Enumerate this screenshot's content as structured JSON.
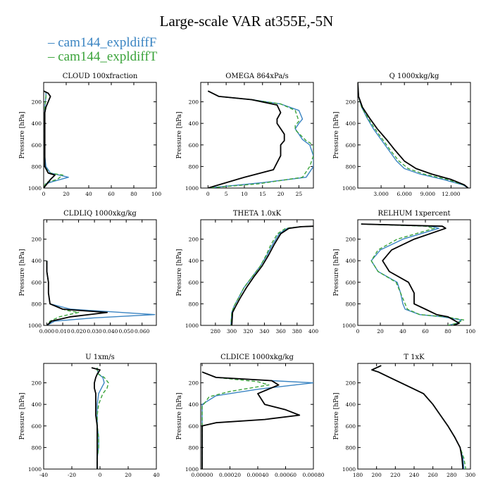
{
  "title": "Large-scale VAR at355E,-5N",
  "legend": [
    {
      "label": "cam144_expldiffF",
      "color": "#3a84c2"
    },
    {
      "label": "cam144_expldiffT",
      "color": "#3aa33a"
    }
  ],
  "series_colors": [
    "#3a84c2",
    "#3aa33a",
    "#000000"
  ],
  "y_axis_label": "Pressure [hPa]",
  "y_ticks": [
    200,
    400,
    600,
    800,
    1000
  ],
  "chart_data": [
    {
      "type": "line",
      "title": "CLOUD  100xfraction",
      "xlim": [
        0,
        100
      ],
      "x_ticks": [
        "0",
        "20",
        "40",
        "60",
        "80",
        "100"
      ],
      "x_tick_values": [
        0,
        20,
        40,
        60,
        80,
        100
      ],
      "ylim": [
        1000,
        20
      ],
      "series": [
        {
          "x": [
            0,
            2,
            2,
            1,
            1,
            1,
            1,
            1,
            1,
            2,
            6,
            22,
            8,
            2,
            0
          ],
          "y": [
            100,
            110,
            150,
            250,
            300,
            400,
            500,
            600,
            700,
            800,
            860,
            900,
            940,
            960,
            1000
          ]
        },
        {
          "x": [
            0,
            2,
            2,
            1,
            1,
            1,
            1,
            1,
            1,
            1,
            5,
            17,
            12,
            2,
            0
          ],
          "y": [
            100,
            110,
            150,
            250,
            300,
            400,
            500,
            600,
            700,
            800,
            860,
            880,
            920,
            950,
            1000
          ]
        },
        {
          "x": [
            0,
            4,
            6,
            2,
            1,
            1,
            1,
            1,
            1,
            1,
            4,
            10,
            6,
            3,
            0
          ],
          "y": [
            100,
            120,
            150,
            250,
            300,
            400,
            500,
            600,
            700,
            800,
            860,
            880,
            920,
            960,
            1000
          ]
        }
      ]
    },
    {
      "type": "line",
      "title": "OMEGA  864xPa/s",
      "xlim": [
        -2,
        29
      ],
      "x_ticks": [
        "0",
        "5",
        "10",
        "15",
        "20",
        "25"
      ],
      "x_tick_values": [
        0,
        5,
        10,
        15,
        20,
        25
      ],
      "ylim": [
        1000,
        20
      ],
      "series": [
        {
          "x": [
            0,
            3,
            12,
            20,
            25,
            26,
            25,
            24,
            26,
            28,
            29,
            29,
            27,
            15,
            0
          ],
          "y": [
            100,
            150,
            180,
            220,
            280,
            360,
            400,
            450,
            550,
            600,
            700,
            800,
            900,
            950,
            1000
          ]
        },
        {
          "x": [
            0,
            3,
            12,
            20,
            24,
            25,
            24,
            24,
            27,
            29,
            29,
            28,
            26,
            14,
            0
          ],
          "y": [
            100,
            150,
            180,
            220,
            280,
            380,
            420,
            460,
            560,
            600,
            700,
            800,
            900,
            960,
            1000
          ]
        },
        {
          "x": [
            0,
            3,
            12,
            19,
            20,
            19,
            19,
            20,
            21,
            21,
            20,
            20,
            18,
            10,
            0
          ],
          "y": [
            100,
            150,
            180,
            230,
            300,
            360,
            400,
            450,
            500,
            560,
            600,
            700,
            830,
            900,
            1000
          ]
        }
      ]
    },
    {
      "type": "line",
      "title": "Q  1000xkg/kg",
      "xlim": [
        0,
        14.5
      ],
      "x_ticks": [
        "3.000",
        "6.000",
        "9.000",
        "12.000"
      ],
      "x_tick_values": [
        3,
        6,
        9,
        12
      ],
      "ylim": [
        1000,
        20
      ],
      "series": [
        {
          "x": [
            0,
            0.1,
            0.5,
            1.2,
            2,
            3,
            4,
            5,
            6,
            8,
            11,
            13.5,
            14.2
          ],
          "y": [
            20,
            150,
            250,
            350,
            450,
            550,
            650,
            750,
            820,
            870,
            920,
            970,
            1000
          ]
        },
        {
          "x": [
            0,
            0.1,
            0.5,
            1.3,
            2.2,
            3.2,
            4.2,
            5.3,
            6.5,
            8.5,
            11.5,
            13.6,
            14.2
          ],
          "y": [
            20,
            150,
            250,
            350,
            450,
            550,
            650,
            750,
            820,
            870,
            920,
            970,
            1000
          ]
        },
        {
          "x": [
            0,
            0.1,
            0.6,
            1.5,
            2.5,
            3.7,
            4.8,
            6,
            7.5,
            9.5,
            12,
            13.7,
            14.2
          ],
          "y": [
            20,
            150,
            250,
            350,
            450,
            550,
            650,
            750,
            820,
            870,
            920,
            970,
            1000
          ]
        }
      ]
    },
    {
      "type": "line",
      "title": "CLDLIQ  1000xkg/kg",
      "xlim": [
        -0.002,
        0.069
      ],
      "x_ticks": [
        "0.000",
        "0.010",
        "0.020",
        "0.030",
        "0.040",
        "0.050",
        "0.060"
      ],
      "x_tick_values": [
        0,
        0.01,
        0.02,
        0.03,
        0.04,
        0.05,
        0.06
      ],
      "ylim": [
        1000,
        20
      ],
      "series": [
        {
          "x": [
            0,
            0,
            0.001,
            0.001,
            0.002,
            0.015,
            0.068,
            0.03,
            0.005,
            0
          ],
          "y": [
            400,
            500,
            600,
            700,
            800,
            850,
            900,
            930,
            960,
            1000
          ]
        },
        {
          "x": [
            0,
            0,
            0.001,
            0.001,
            0.002,
            0.012,
            0.02,
            0.008,
            0.002,
            0
          ],
          "y": [
            400,
            500,
            600,
            700,
            800,
            860,
            880,
            920,
            960,
            1000
          ]
        },
        {
          "x": [
            0,
            0,
            0.001,
            0.001,
            0.002,
            0.01,
            0.038,
            0.015,
            0.003,
            0
          ],
          "y": [
            400,
            500,
            600,
            700,
            800,
            850,
            880,
            920,
            960,
            1000
          ]
        }
      ]
    },
    {
      "type": "line",
      "title": "THETA  1.0xK",
      "xlim": [
        262,
        400
      ],
      "x_ticks": [
        "280",
        "300",
        "320",
        "340",
        "360",
        "380",
        "400"
      ],
      "x_tick_values": [
        280,
        300,
        320,
        340,
        360,
        380,
        400
      ],
      "ylim": [
        1000,
        20
      ],
      "series": [
        {
          "x": [
            400,
            385,
            368,
            358,
            350,
            343,
            335,
            325,
            315,
            308,
            303,
            300,
            299
          ],
          "y": [
            80,
            85,
            100,
            150,
            250,
            350,
            450,
            550,
            650,
            750,
            820,
            880,
            1000
          ]
        },
        {
          "x": [
            400,
            384,
            366,
            356,
            348,
            342,
            335,
            325,
            315,
            308,
            303,
            300,
            299
          ],
          "y": [
            80,
            85,
            100,
            150,
            250,
            350,
            450,
            550,
            650,
            750,
            820,
            880,
            1000
          ]
        },
        {
          "x": [
            400,
            385,
            370,
            360,
            352,
            345,
            337,
            327,
            318,
            310,
            305,
            301,
            300
          ],
          "y": [
            80,
            85,
            100,
            150,
            250,
            350,
            450,
            550,
            650,
            750,
            820,
            880,
            1000
          ]
        }
      ]
    },
    {
      "type": "line",
      "title": "RELHUM  1xpercent",
      "xlim": [
        0,
        100
      ],
      "x_ticks": [
        "0",
        "20",
        "40",
        "60",
        "80",
        "100"
      ],
      "x_tick_values": [
        0,
        20,
        40,
        60,
        80,
        100
      ],
      "ylim": [
        1000,
        20
      ],
      "series": [
        {
          "x": [
            3,
            65,
            72,
            40,
            20,
            12,
            18,
            35,
            38,
            40,
            42,
            55,
            75,
            92,
            88,
            80
          ],
          "y": [
            60,
            80,
            100,
            200,
            300,
            400,
            500,
            600,
            700,
            800,
            850,
            900,
            920,
            950,
            980,
            1000
          ]
        },
        {
          "x": [
            3,
            60,
            68,
            35,
            18,
            12,
            18,
            34,
            38,
            42,
            44,
            55,
            78,
            94,
            88,
            80
          ],
          "y": [
            60,
            80,
            100,
            200,
            300,
            400,
            500,
            600,
            700,
            800,
            850,
            900,
            920,
            950,
            980,
            1000
          ]
        },
        {
          "x": [
            3,
            75,
            78,
            50,
            30,
            22,
            28,
            45,
            50,
            50,
            60,
            70,
            80,
            85,
            90,
            85
          ],
          "y": [
            60,
            80,
            100,
            200,
            300,
            400,
            500,
            600,
            700,
            800,
            850,
            900,
            920,
            950,
            980,
            1000
          ]
        }
      ]
    },
    {
      "type": "line",
      "title": "U  1xm/s",
      "xlim": [
        -40,
        40
      ],
      "x_ticks": [
        "-40",
        "-20",
        "0",
        "20",
        "40"
      ],
      "x_tick_values": [
        -40,
        -20,
        0,
        20,
        40
      ],
      "ylim": [
        1000,
        20
      ],
      "series": [
        {
          "x": [
            -2,
            -2,
            -1,
            2,
            3,
            1,
            -1,
            -2,
            -2,
            -2,
            -1,
            -1,
            -2,
            -2
          ],
          "y": [
            60,
            80,
            120,
            150,
            200,
            250,
            300,
            400,
            500,
            600,
            700,
            800,
            900,
            1000
          ]
        },
        {
          "x": [
            -2,
            -2,
            -1,
            3,
            6,
            5,
            2,
            -1,
            -2,
            -2,
            -1,
            -1,
            -2,
            -2
          ],
          "y": [
            60,
            80,
            120,
            150,
            200,
            250,
            300,
            400,
            500,
            600,
            700,
            800,
            900,
            1000
          ]
        },
        {
          "x": [
            -6,
            0,
            -2,
            -3,
            -4,
            -4,
            -3,
            -3,
            -3,
            -2,
            -2,
            -2,
            -2,
            -2
          ],
          "y": [
            60,
            80,
            120,
            150,
            200,
            250,
            300,
            400,
            500,
            600,
            700,
            800,
            900,
            1000
          ]
        }
      ]
    },
    {
      "type": "line",
      "title": "CLDICE  1000xkg/kg",
      "xlim": [
        -1e-05,
        0.0008
      ],
      "x_ticks": [
        "0.00000",
        "0.00020",
        "0.00040",
        "0.00060",
        "0.00080"
      ],
      "x_tick_values": [
        0,
        0.0002,
        0.0004,
        0.0006,
        0.0008
      ],
      "ylim": [
        1000,
        20
      ],
      "series": [
        {
          "x": [
            0,
            0.0001,
            0.0005,
            0.0008,
            0.0004,
            0.0001,
            0,
            0,
            0
          ],
          "y": [
            100,
            150,
            180,
            200,
            260,
            320,
            400,
            600,
            1000
          ]
        },
        {
          "x": [
            0,
            0.0001,
            0.0004,
            0.00048,
            0.0002,
            5e-05,
            0,
            0,
            0
          ],
          "y": [
            100,
            150,
            190,
            220,
            280,
            330,
            420,
            600,
            1000
          ]
        },
        {
          "x": [
            0,
            0.0001,
            0.0005,
            0.00055,
            0.0004,
            0.00045,
            0.0006,
            0.0007,
            0.00045,
            0.0001,
            0,
            0
          ],
          "y": [
            100,
            150,
            180,
            220,
            300,
            400,
            450,
            500,
            540,
            570,
            600,
            1000
          ]
        }
      ]
    },
    {
      "type": "line",
      "title": "T  1xK",
      "xlim": [
        180,
        300
      ],
      "x_ticks": [
        "180",
        "200",
        "220",
        "240",
        "260",
        "280",
        "300"
      ],
      "x_tick_values": [
        180,
        200,
        220,
        240,
        260,
        280,
        300
      ],
      "ylim": [
        1000,
        20
      ],
      "series": [
        {
          "x": [
            205,
            195,
            202,
            214,
            226,
            238,
            250,
            260,
            268,
            276,
            283,
            289,
            292,
            293
          ],
          "y": [
            40,
            80,
            100,
            150,
            200,
            250,
            300,
            400,
            500,
            600,
            700,
            800,
            900,
            1000
          ]
        },
        {
          "x": [
            205,
            195,
            202,
            214,
            226,
            238,
            250,
            260,
            268,
            276,
            283,
            289,
            293,
            295
          ],
          "y": [
            40,
            80,
            100,
            150,
            200,
            250,
            300,
            400,
            500,
            600,
            700,
            800,
            900,
            1000
          ]
        },
        {
          "x": [
            205,
            195,
            202,
            214,
            226,
            238,
            250,
            260,
            268,
            276,
            283,
            289,
            291,
            292
          ],
          "y": [
            40,
            80,
            100,
            150,
            200,
            250,
            300,
            400,
            500,
            600,
            700,
            800,
            900,
            1000
          ]
        }
      ]
    }
  ]
}
